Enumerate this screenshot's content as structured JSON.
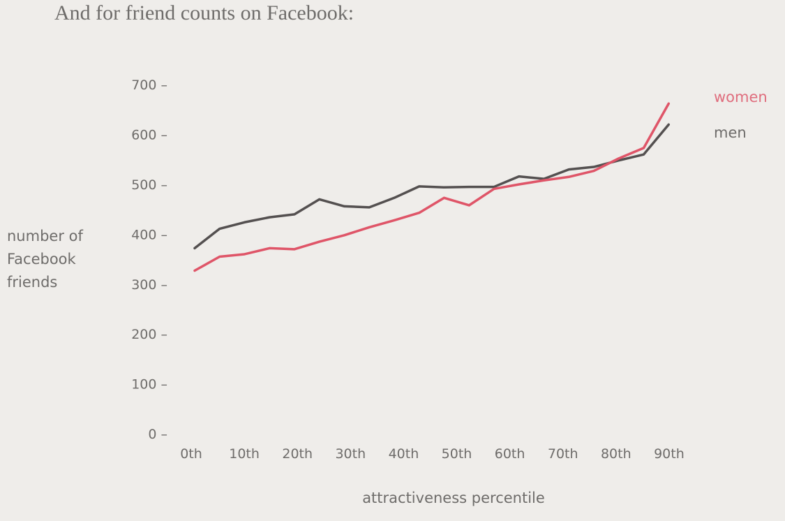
{
  "intro": "And for friend counts on Facebook:",
  "chart_data": {
    "type": "line",
    "title": "",
    "xlabel": "attractiveness percentile",
    "ylabel": [
      "number of",
      "Facebook",
      "friends"
    ],
    "xlim": [
      0,
      100
    ],
    "ylim": [
      0,
      700
    ],
    "yticks": [
      0,
      100,
      200,
      300,
      400,
      500,
      600,
      700
    ],
    "ytick_labels": [
      "0 –",
      "100 –",
      "200 –",
      "300 –",
      "400 –",
      "500 –",
      "600 –",
      "700 –"
    ],
    "xticks": [
      0,
      10,
      20,
      30,
      40,
      50,
      60,
      70,
      80,
      90
    ],
    "xtick_labels": [
      "0th",
      "10th",
      "20th",
      "30th",
      "40th",
      "50th",
      "60th",
      "70th",
      "80th",
      "90th"
    ],
    "xtick_colors": [
      "#6e6c6a",
      "#6e6c6a",
      "#6e6c6a",
      "#6e6c6a",
      "#6e6c6a",
      "#b15563",
      "#96585c",
      "#96585c",
      "#b15563",
      "#b15563"
    ],
    "x": [
      0,
      5,
      10,
      15,
      20,
      25,
      30,
      35,
      40,
      45,
      50,
      55,
      60,
      65,
      70,
      75,
      80,
      85,
      90,
      95
    ],
    "series": [
      {
        "name": "men",
        "color": "#545050",
        "values": [
          372,
          411,
          424,
          434,
          440,
          470,
          456,
          454,
          473,
          496,
          494,
          495,
          495,
          516,
          511,
          530,
          535,
          548,
          560,
          620
        ]
      },
      {
        "name": "women",
        "color": "#df5568",
        "values": [
          327,
          355,
          360,
          372,
          370,
          385,
          398,
          414,
          428,
          443,
          473,
          458,
          491,
          500,
          508,
          515,
          527,
          552,
          573,
          662
        ]
      }
    ],
    "legend": [
      {
        "name": "women",
        "color": "#df6d7d"
      },
      {
        "name": "men",
        "color": "#6e6c6a"
      }
    ],
    "legend_position": "right-end"
  }
}
